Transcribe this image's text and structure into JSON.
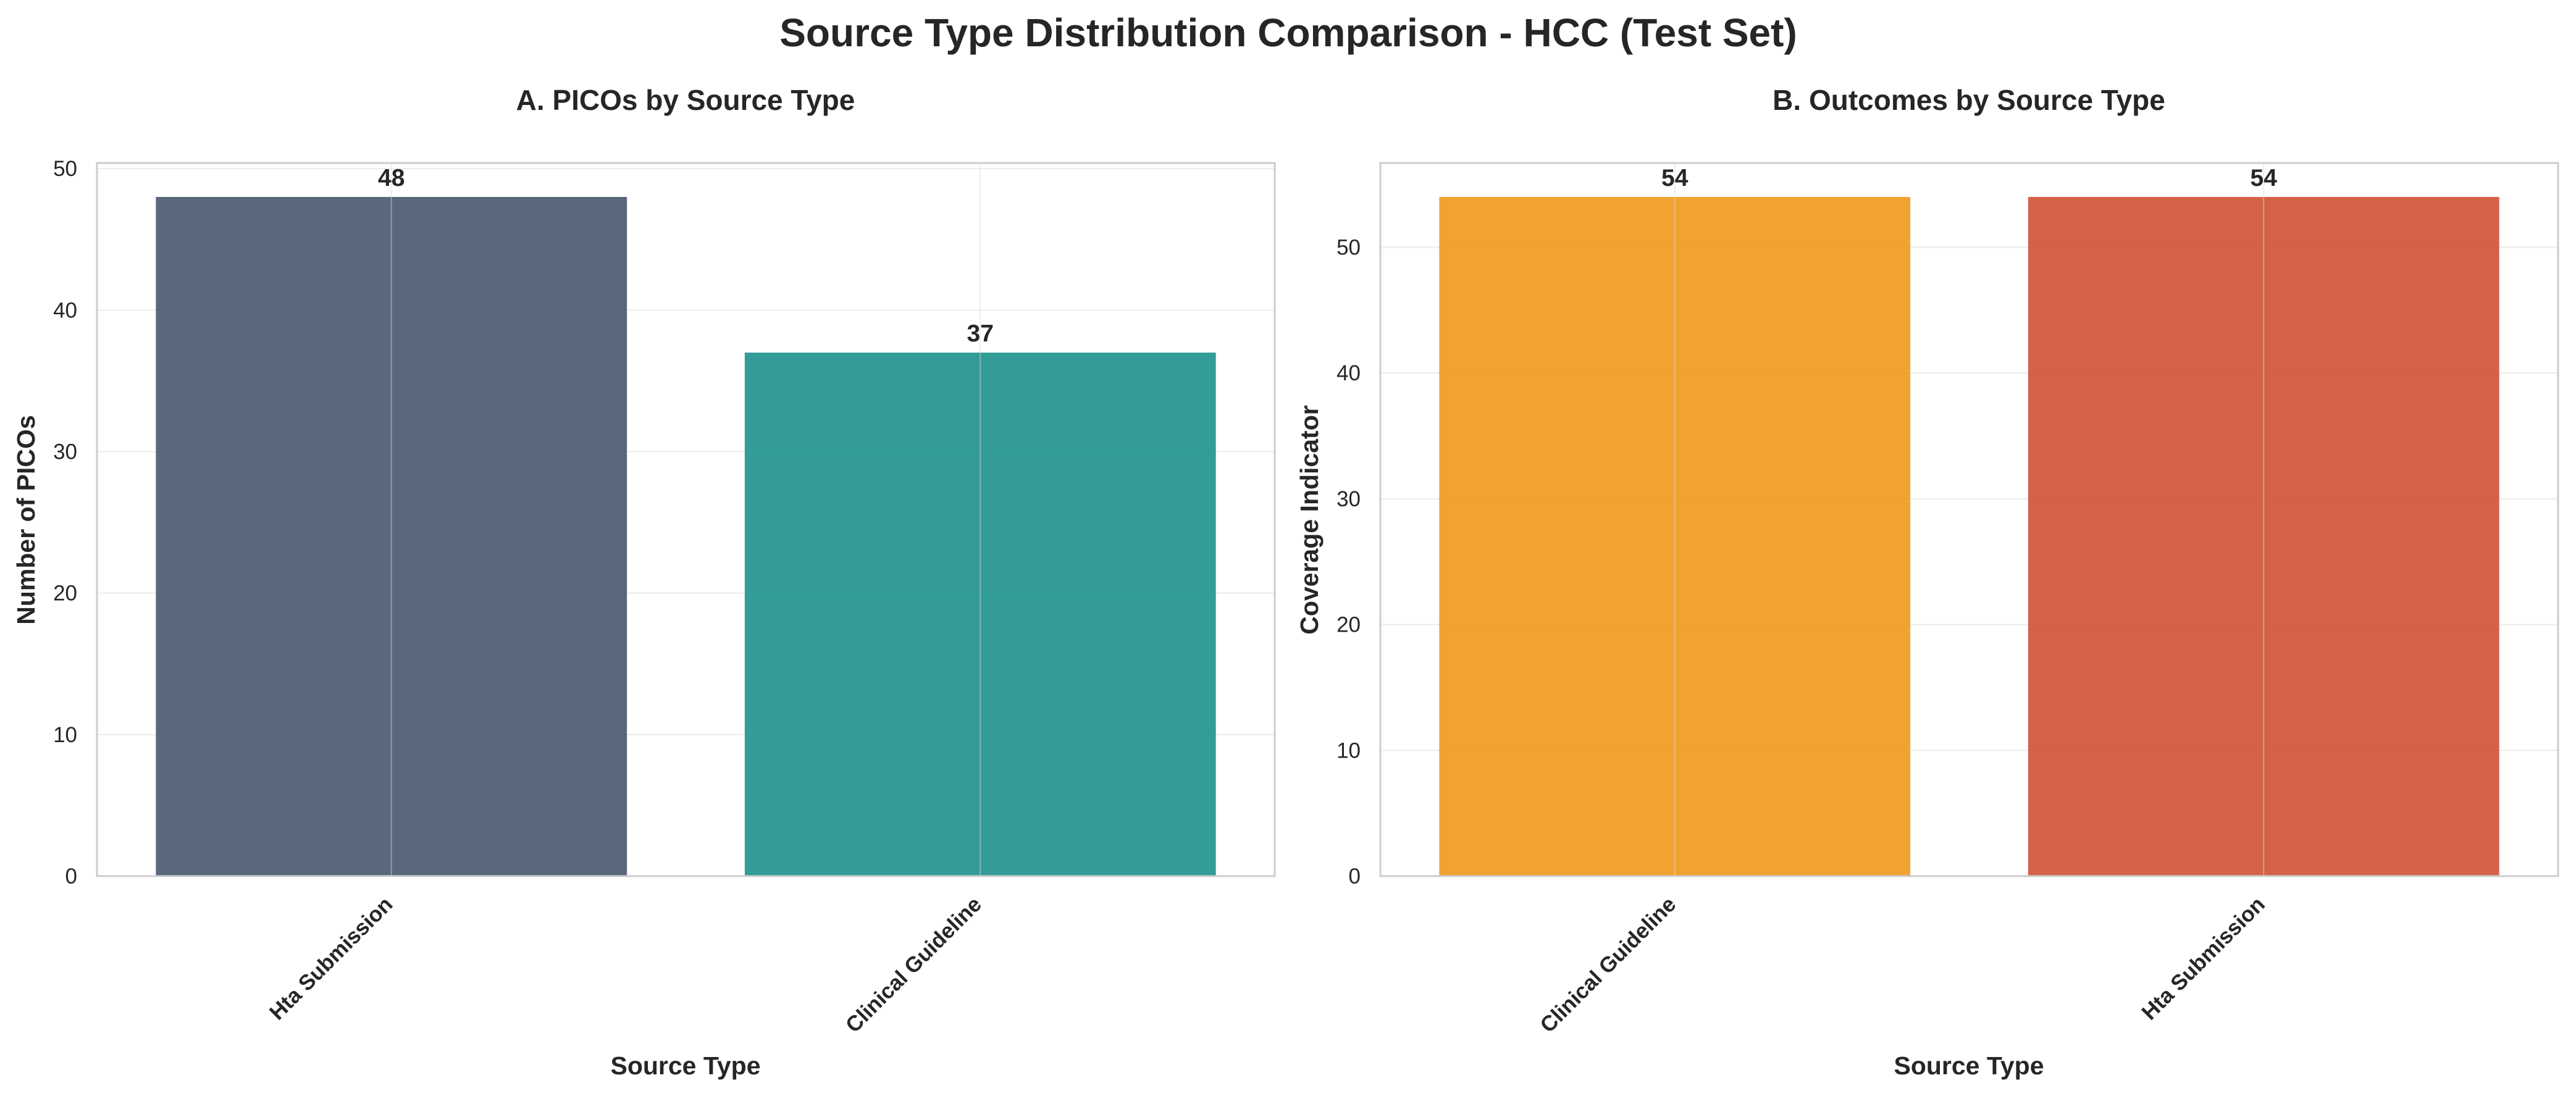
{
  "figure": {
    "title": "Source Type Distribution Comparison - HCC (Test Set)"
  },
  "chart_data": [
    {
      "type": "bar",
      "title": "A. PICOs by Source Type",
      "xlabel": "Source Type",
      "ylabel": "Number of PICOs",
      "categories": [
        "Hta Submission",
        "Clinical Guideline"
      ],
      "values": [
        48,
        37
      ],
      "colors": [
        "#4d5d72",
        "#23958e"
      ],
      "ylim": [
        0,
        50.4
      ],
      "yticks": [
        0,
        10,
        20,
        30,
        40,
        50
      ],
      "grid": true
    },
    {
      "type": "bar",
      "title": "B. Outcomes by Source Type",
      "xlabel": "Source Type",
      "ylabel": "Coverage Indicator",
      "categories": [
        "Clinical Guideline",
        "Hta Submission"
      ],
      "values": [
        54,
        54
      ],
      "colors": [
        "#f09c21",
        "#d1563a"
      ],
      "ylim": [
        0,
        56.7
      ],
      "yticks": [
        0,
        10,
        20,
        30,
        40,
        50
      ],
      "grid": true
    }
  ]
}
